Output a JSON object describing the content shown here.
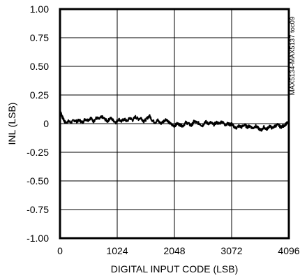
{
  "chart_data": {
    "type": "line",
    "title": "",
    "xlabel": "DIGITAL INPUT CODE (LSB)",
    "ylabel": "INL (LSB)",
    "xlim": [
      0,
      4096
    ],
    "ylim": [
      -1.0,
      1.0
    ],
    "x_ticks": [
      0,
      1024,
      2048,
      3072,
      4096
    ],
    "x_tick_labels": [
      "0",
      "1024",
      "2048",
      "3072",
      "4096"
    ],
    "y_ticks": [
      1.0,
      0.75,
      0.5,
      0.25,
      0,
      -0.25,
      -0.5,
      -0.75,
      -1.0
    ],
    "y_tick_labels": [
      "1.00",
      "0.75",
      "0.50",
      "0.25",
      "0",
      "-0.25",
      "-0.50",
      "-0.75",
      "-1.00"
    ],
    "grid": true,
    "side_note": "MAX5134-MAX5137 toc09",
    "series": [
      {
        "x": [
          0,
          20,
          40,
          60,
          80,
          100,
          150,
          200,
          250,
          300,
          350,
          400,
          450,
          500,
          550,
          600,
          650,
          700,
          750,
          800,
          850,
          900,
          950,
          1000,
          1050,
          1100,
          1150,
          1200,
          1250,
          1300,
          1350,
          1400,
          1450,
          1500,
          1550,
          1600,
          1650,
          1700,
          1750,
          1800,
          1850,
          1900,
          1950,
          2000,
          2048,
          2100,
          2150,
          2200,
          2250,
          2300,
          2350,
          2400,
          2450,
          2500,
          2550,
          2600,
          2650,
          2700,
          2750,
          2800,
          2850,
          2900,
          2950,
          3000,
          3050,
          3072,
          3100,
          3150,
          3200,
          3250,
          3300,
          3350,
          3400,
          3450,
          3500,
          3550,
          3600,
          3650,
          3700,
          3750,
          3800,
          3850,
          3900,
          3950,
          4000,
          4050,
          4096
        ],
        "y": [
          0.1,
          0.09,
          0.06,
          0.04,
          0.02,
          0.01,
          0.02,
          0.01,
          0.03,
          0.02,
          0.03,
          0.01,
          0.04,
          0.03,
          0.05,
          0.02,
          0.05,
          0.04,
          0.06,
          0.04,
          0.02,
          0.05,
          0.03,
          0.01,
          0.04,
          0.02,
          0.04,
          0.02,
          0.05,
          0.03,
          0.06,
          0.04,
          0.05,
          0.02,
          0.04,
          0.07,
          0.03,
          0.01,
          0.03,
          0.0,
          0.02,
          0.04,
          0.01,
          -0.01,
          -0.02,
          0.0,
          -0.01,
          -0.02,
          0.01,
          0.0,
          -0.02,
          0.02,
          0.01,
          0.0,
          -0.02,
          0.02,
          0.0,
          0.01,
          -0.01,
          0.01,
          0.0,
          0.02,
          -0.01,
          0.0,
          -0.01,
          0.0,
          -0.02,
          -0.04,
          -0.02,
          -0.03,
          -0.01,
          -0.03,
          -0.02,
          -0.04,
          -0.02,
          -0.04,
          -0.06,
          -0.03,
          -0.05,
          -0.02,
          -0.04,
          -0.02,
          -0.01,
          -0.03,
          -0.02,
          0.0,
          0.01
        ]
      }
    ]
  }
}
